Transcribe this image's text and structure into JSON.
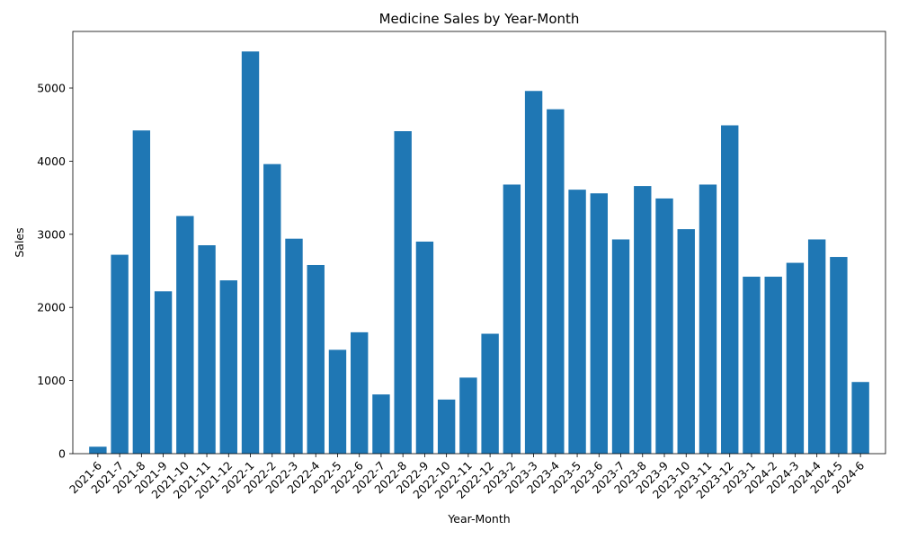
{
  "chart_data": {
    "type": "bar",
    "title": "Medicine Sales by Year-Month",
    "xlabel": "Year-Month",
    "ylabel": "Sales",
    "ylim": [
      0,
      5774
    ],
    "yticks": [
      0,
      1000,
      2000,
      3000,
      4000,
      5000
    ],
    "grid": false,
    "bar_color": "#1f77b4",
    "categories": [
      "2021-6",
      "2021-7",
      "2021-8",
      "2021-9",
      "2021-10",
      "2021-11",
      "2021-12",
      "2022-1",
      "2022-2",
      "2022-3",
      "2022-4",
      "2022-5",
      "2022-6",
      "2022-7",
      "2022-8",
      "2022-9",
      "2022-10",
      "2022-11",
      "2022-12",
      "2023-2",
      "2023-3",
      "2023-4",
      "2023-5",
      "2023-6",
      "2023-7",
      "2023-8",
      "2023-9",
      "2023-10",
      "2023-11",
      "2023-12",
      "2023-1",
      "2024-2",
      "2024-3",
      "2024-4",
      "2024-5",
      "2024-6"
    ],
    "values": [
      95,
      2720,
      4420,
      2220,
      3250,
      2850,
      2370,
      5500,
      3960,
      2940,
      2580,
      1420,
      1660,
      810,
      4410,
      2900,
      740,
      1040,
      1640,
      3680,
      4960,
      4710,
      3610,
      3560,
      2930,
      3660,
      3490,
      3070,
      3680,
      4490,
      2420,
      2420,
      2610,
      2930,
      2690,
      980
    ]
  }
}
